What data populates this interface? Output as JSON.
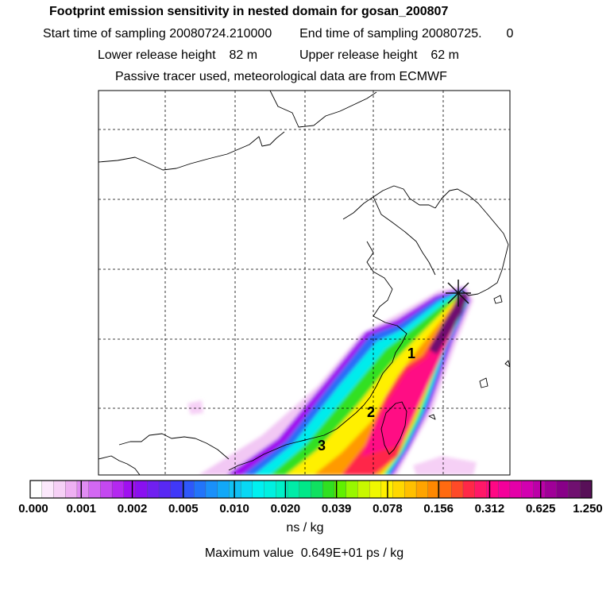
{
  "header": {
    "title": "Footprint emission sensitivity in nested domain for gosan_200807",
    "start_label": "Start time of sampling",
    "start_value": "20080724.210000",
    "end_label": "End time of sampling",
    "end_value": "20080725.",
    "end_suffix": "0",
    "lower_label": "Lower release height",
    "lower_value": "82 m",
    "upper_label": "Upper release height",
    "upper_value": "62 m",
    "tracer_note": "Passive tracer used, meteorological data are from ECMWF"
  },
  "map": {
    "markers": [
      "1",
      "2",
      "3"
    ],
    "receptor_symbol": "*",
    "receptor_color": "#111111"
  },
  "colorbar": {
    "unit": "ns / kg",
    "tick_labels": [
      "0.000",
      "0.001",
      "0.002",
      "0.005",
      "0.010",
      "0.020",
      "0.039",
      "0.078",
      "0.156",
      "0.312",
      "0.625",
      "1.250"
    ],
    "colors": [
      "#ffffff",
      "#fce8fc",
      "#f6d0f6",
      "#eeb0f2",
      "#e08cf2",
      "#d368f2",
      "#c448f0",
      "#b428f0",
      "#a010f0",
      "#8a10f0",
      "#7020f0",
      "#5828f4",
      "#4038f8",
      "#2e58fa",
      "#2274fa",
      "#1a90fa",
      "#12a8f8",
      "#10c0f4",
      "#08d8f4",
      "#00f0f0",
      "#00f0e0",
      "#00f0c8",
      "#00eca8",
      "#00e888",
      "#10e060",
      "#30e020",
      "#60f000",
      "#98f800",
      "#c8f800",
      "#f0f800",
      "#fff000",
      "#ffd800",
      "#ffc000",
      "#ffa400",
      "#ff8800",
      "#ff6a10",
      "#ff4a28",
      "#ff2848",
      "#ff1868",
      "#ff0884",
      "#f4009a",
      "#e400a8",
      "#d200b0",
      "#bc00a8",
      "#a00098",
      "#880088",
      "#701070",
      "#581058"
    ]
  },
  "footer": {
    "max_label": "Maximum value",
    "max_value": "0.649E+01 ps / kg"
  }
}
